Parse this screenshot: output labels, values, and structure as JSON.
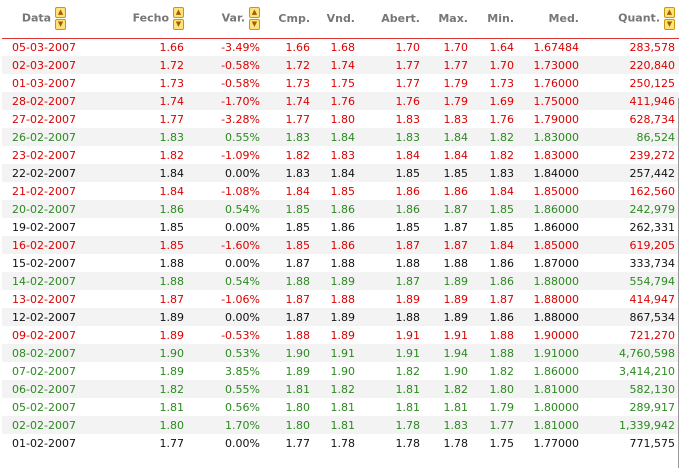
{
  "colors": {
    "down": "#dd0000",
    "up": "#2b8a1f",
    "flat": "#111111",
    "sort_icon": "#ffe27a"
  },
  "columns": [
    {
      "label": "Data",
      "sortable": true
    },
    {
      "label": "Fecho",
      "sortable": true
    },
    {
      "label": "Var.",
      "sortable": true
    },
    {
      "label": "Cmp.",
      "sortable": false
    },
    {
      "label": "Vnd.",
      "sortable": false
    },
    {
      "label": "Abert.",
      "sortable": false
    },
    {
      "label": "Max.",
      "sortable": false
    },
    {
      "label": "Min.",
      "sortable": false
    },
    {
      "label": "Med.",
      "sortable": false
    },
    {
      "label": "Quant.",
      "sortable": true
    }
  ],
  "rows": [
    {
      "trend": "down",
      "cells": [
        "05-03-2007",
        "1.66",
        "-3.49%",
        "1.66",
        "1.68",
        "1.70",
        "1.70",
        "1.64",
        "1.67484",
        "283,578"
      ]
    },
    {
      "trend": "down",
      "cells": [
        "02-03-2007",
        "1.72",
        "-0.58%",
        "1.72",
        "1.74",
        "1.77",
        "1.77",
        "1.70",
        "1.73000",
        "220,840"
      ]
    },
    {
      "trend": "down",
      "cells": [
        "01-03-2007",
        "1.73",
        "-0.58%",
        "1.73",
        "1.75",
        "1.77",
        "1.79",
        "1.73",
        "1.76000",
        "250,125"
      ]
    },
    {
      "trend": "down",
      "cells": [
        "28-02-2007",
        "1.74",
        "-1.70%",
        "1.74",
        "1.76",
        "1.76",
        "1.79",
        "1.69",
        "1.75000",
        "411,946"
      ]
    },
    {
      "trend": "down",
      "cells": [
        "27-02-2007",
        "1.77",
        "-3.28%",
        "1.77",
        "1.80",
        "1.83",
        "1.83",
        "1.76",
        "1.79000",
        "628,734"
      ]
    },
    {
      "trend": "up",
      "cells": [
        "26-02-2007",
        "1.83",
        "0.55%",
        "1.83",
        "1.84",
        "1.83",
        "1.84",
        "1.82",
        "1.83000",
        "86,524"
      ]
    },
    {
      "trend": "down",
      "cells": [
        "23-02-2007",
        "1.82",
        "-1.09%",
        "1.82",
        "1.83",
        "1.84",
        "1.84",
        "1.82",
        "1.83000",
        "239,272"
      ]
    },
    {
      "trend": "flat",
      "cells": [
        "22-02-2007",
        "1.84",
        "0.00%",
        "1.83",
        "1.84",
        "1.85",
        "1.85",
        "1.83",
        "1.84000",
        "257,442"
      ]
    },
    {
      "trend": "down",
      "cells": [
        "21-02-2007",
        "1.84",
        "-1.08%",
        "1.84",
        "1.85",
        "1.86",
        "1.86",
        "1.84",
        "1.85000",
        "162,560"
      ]
    },
    {
      "trend": "up",
      "cells": [
        "20-02-2007",
        "1.86",
        "0.54%",
        "1.85",
        "1.86",
        "1.86",
        "1.87",
        "1.85",
        "1.86000",
        "242,979"
      ]
    },
    {
      "trend": "flat",
      "cells": [
        "19-02-2007",
        "1.85",
        "0.00%",
        "1.85",
        "1.86",
        "1.85",
        "1.87",
        "1.85",
        "1.86000",
        "262,331"
      ]
    },
    {
      "trend": "down",
      "cells": [
        "16-02-2007",
        "1.85",
        "-1.60%",
        "1.85",
        "1.86",
        "1.87",
        "1.87",
        "1.84",
        "1.85000",
        "619,205"
      ]
    },
    {
      "trend": "flat",
      "cells": [
        "15-02-2007",
        "1.88",
        "0.00%",
        "1.87",
        "1.88",
        "1.88",
        "1.88",
        "1.86",
        "1.87000",
        "333,734"
      ]
    },
    {
      "trend": "up",
      "cells": [
        "14-02-2007",
        "1.88",
        "0.54%",
        "1.88",
        "1.89",
        "1.87",
        "1.89",
        "1.86",
        "1.88000",
        "554,794"
      ]
    },
    {
      "trend": "down",
      "cells": [
        "13-02-2007",
        "1.87",
        "-1.06%",
        "1.87",
        "1.88",
        "1.89",
        "1.89",
        "1.87",
        "1.88000",
        "414,947"
      ]
    },
    {
      "trend": "flat",
      "cells": [
        "12-02-2007",
        "1.89",
        "0.00%",
        "1.87",
        "1.89",
        "1.88",
        "1.89",
        "1.86",
        "1.88000",
        "867,534"
      ]
    },
    {
      "trend": "down",
      "cells": [
        "09-02-2007",
        "1.89",
        "-0.53%",
        "1.88",
        "1.89",
        "1.91",
        "1.91",
        "1.88",
        "1.90000",
        "721,270"
      ]
    },
    {
      "trend": "up",
      "cells": [
        "08-02-2007",
        "1.90",
        "0.53%",
        "1.90",
        "1.91",
        "1.91",
        "1.94",
        "1.88",
        "1.91000",
        "4,760,598"
      ]
    },
    {
      "trend": "up",
      "cells": [
        "07-02-2007",
        "1.89",
        "3.85%",
        "1.89",
        "1.90",
        "1.82",
        "1.90",
        "1.82",
        "1.86000",
        "3,414,210"
      ]
    },
    {
      "trend": "up",
      "cells": [
        "06-02-2007",
        "1.82",
        "0.55%",
        "1.81",
        "1.82",
        "1.81",
        "1.82",
        "1.80",
        "1.81000",
        "582,130"
      ]
    },
    {
      "trend": "up",
      "cells": [
        "05-02-2007",
        "1.81",
        "0.56%",
        "1.80",
        "1.81",
        "1.81",
        "1.81",
        "1.79",
        "1.80000",
        "289,917"
      ]
    },
    {
      "trend": "up",
      "cells": [
        "02-02-2007",
        "1.80",
        "1.70%",
        "1.80",
        "1.81",
        "1.78",
        "1.83",
        "1.77",
        "1.81000",
        "1,339,942"
      ]
    },
    {
      "trend": "flat",
      "cells": [
        "01-02-2007",
        "1.77",
        "0.00%",
        "1.77",
        "1.78",
        "1.78",
        "1.78",
        "1.75",
        "1.77000",
        "771,575"
      ]
    }
  ]
}
